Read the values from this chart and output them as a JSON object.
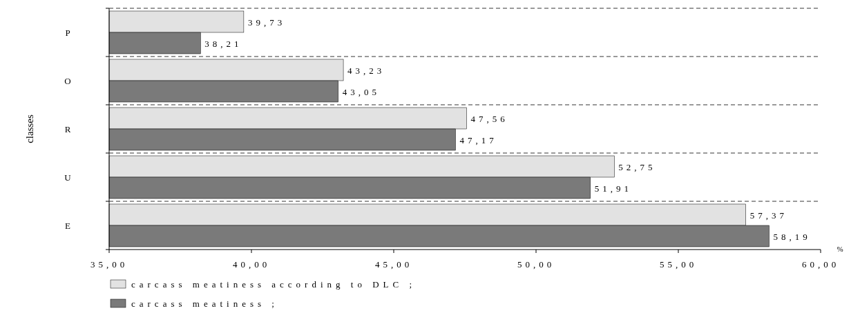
{
  "chart_data": {
    "type": "bar",
    "orientation": "horizontal",
    "ylabel": "classes",
    "xlabel": "%",
    "categories": [
      "P",
      "O",
      "R",
      "U",
      "E"
    ],
    "series": [
      {
        "name": "carcass meatiness according to DLC ;",
        "color": "#e2e2e2",
        "values": [
          39.73,
          43.23,
          47.56,
          52.75,
          57.37
        ],
        "value_labels": [
          "39,73",
          "43,23",
          "47,56",
          "52,75",
          "57,37"
        ]
      },
      {
        "name": "carcass meatiness ;",
        "color": "#7a7a7a",
        "values": [
          38.21,
          43.05,
          47.17,
          51.91,
          58.19
        ],
        "value_labels": [
          "38,21",
          "43,05",
          "47,17",
          "51,91",
          "58,19"
        ]
      }
    ],
    "xlim": [
      35,
      60
    ],
    "xticks": [
      {
        "value": 35,
        "label": "35,00"
      },
      {
        "value": 40,
        "label": "40,00"
      },
      {
        "value": 45,
        "label": "45,00"
      },
      {
        "value": 50,
        "label": "50,00"
      },
      {
        "value": 55,
        "label": "55,00"
      },
      {
        "value": 60,
        "label": "60,00"
      }
    ],
    "grid": "y",
    "legend": "bottom"
  }
}
